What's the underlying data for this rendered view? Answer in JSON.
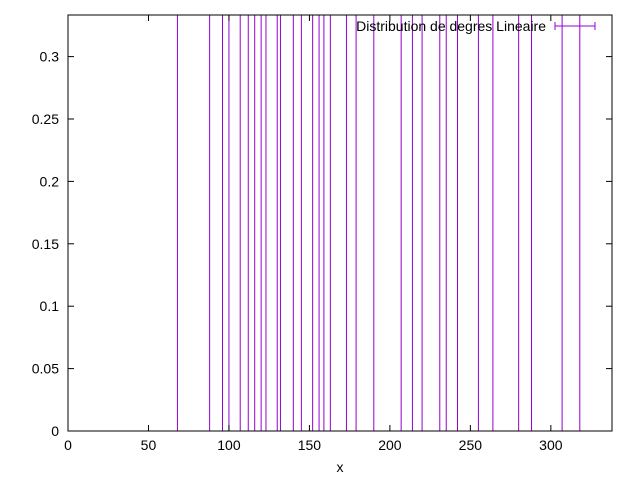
{
  "chart_data": {
    "type": "impulse",
    "title": "",
    "xlabel": "x",
    "ylabel": "",
    "xlim": [
      0,
      338
    ],
    "ylim": [
      0,
      0.333333
    ],
    "x_ticks": [
      0,
      50,
      100,
      150,
      200,
      250,
      300
    ],
    "x_tick_labels": [
      "0",
      "50",
      "100",
      "150",
      "200",
      "250",
      "300"
    ],
    "y_ticks": [
      0,
      0.05,
      0.1,
      0.15,
      0.2,
      0.25,
      0.3
    ],
    "y_tick_labels": [
      "0",
      "0.05",
      "0.1",
      "0.15",
      "0.2",
      "0.25",
      "0.3"
    ],
    "grid": false,
    "legend_position": "top-right",
    "series": [
      {
        "name": "Distribution de degres Lineaire",
        "color": "#9400d3",
        "points": [
          {
            "x": 68,
            "y": 0.333333
          },
          {
            "x": 88,
            "y": 0.333333
          },
          {
            "x": 96,
            "y": 0.333333
          },
          {
            "x": 100,
            "y": 0.333333
          },
          {
            "x": 107,
            "y": 0.333333
          },
          {
            "x": 112,
            "y": 0.333333
          },
          {
            "x": 116,
            "y": 0.333333
          },
          {
            "x": 120,
            "y": 0.333333
          },
          {
            "x": 123,
            "y": 0.333333
          },
          {
            "x": 130,
            "y": 0.333333
          },
          {
            "x": 132,
            "y": 0.333333
          },
          {
            "x": 140,
            "y": 0.333333
          },
          {
            "x": 145,
            "y": 0.333333
          },
          {
            "x": 152,
            "y": 0.333333
          },
          {
            "x": 156,
            "y": 0.333333
          },
          {
            "x": 159,
            "y": 0.333333
          },
          {
            "x": 163,
            "y": 0.333333
          },
          {
            "x": 173,
            "y": 0.333333
          },
          {
            "x": 179,
            "y": 0.333333
          },
          {
            "x": 190,
            "y": 0.333333
          },
          {
            "x": 207,
            "y": 0.333333
          },
          {
            "x": 214,
            "y": 0.333333
          },
          {
            "x": 220,
            "y": 0.333333
          },
          {
            "x": 231,
            "y": 0.333333
          },
          {
            "x": 235,
            "y": 0.333333
          },
          {
            "x": 242,
            "y": 0.333333
          },
          {
            "x": 255,
            "y": 0.333333
          },
          {
            "x": 264,
            "y": 0.333333
          },
          {
            "x": 280,
            "y": 0.333333
          },
          {
            "x": 288,
            "y": 0.333333
          },
          {
            "x": 307,
            "y": 0.333333
          },
          {
            "x": 318,
            "y": 0.333333
          },
          {
            "x": 338,
            "y": 0.333333
          }
        ]
      }
    ]
  }
}
